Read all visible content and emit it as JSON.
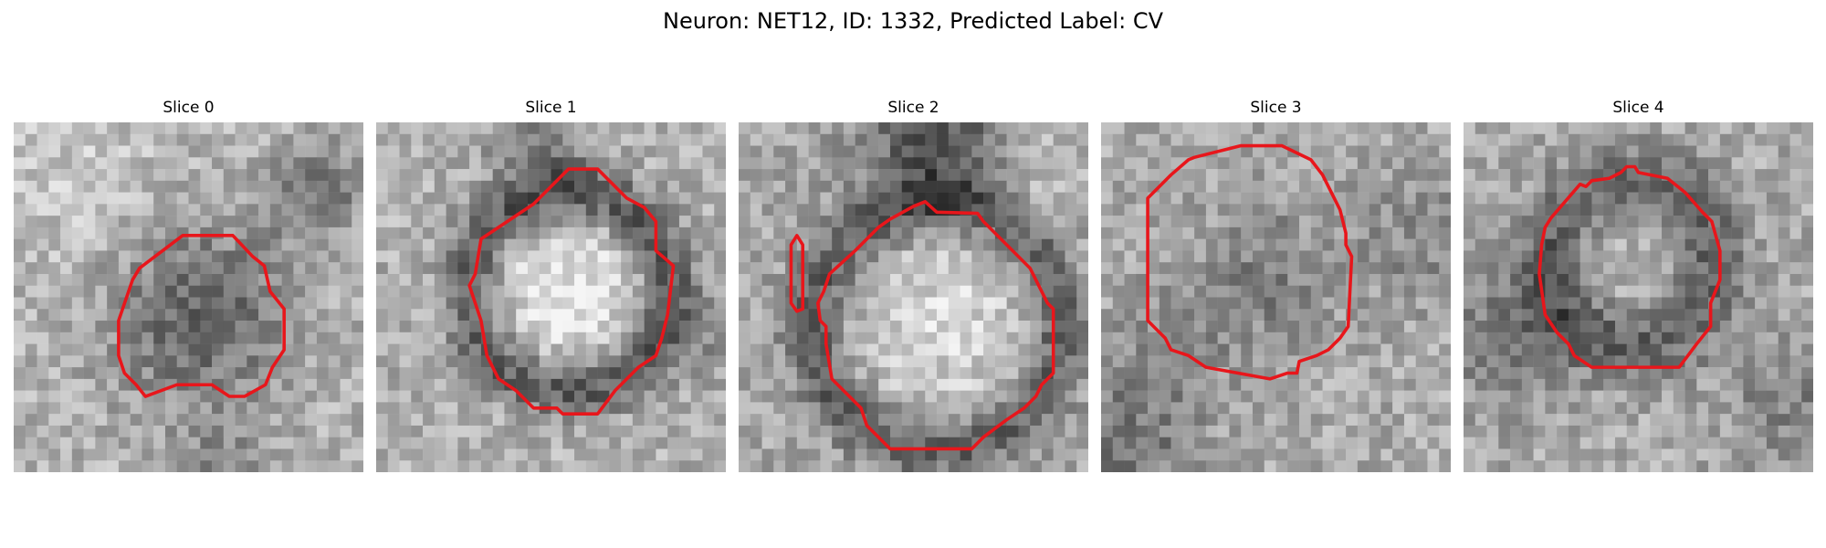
{
  "figure": {
    "title": "Neuron: NET12, ID: 1332, Predicted Label: CV"
  },
  "style": {
    "outline_color": "#e8161b"
  },
  "slices": [
    {
      "title": "Slice 0",
      "pattern": "dark-blob"
    },
    {
      "title": "Slice 1",
      "pattern": "bright-cell-dark-ring"
    },
    {
      "title": "Slice 2",
      "pattern": "large-bright-cell"
    },
    {
      "title": "Slice 3",
      "pattern": "faint-cell"
    },
    {
      "title": "Slice 4",
      "pattern": "ring-texture"
    }
  ]
}
